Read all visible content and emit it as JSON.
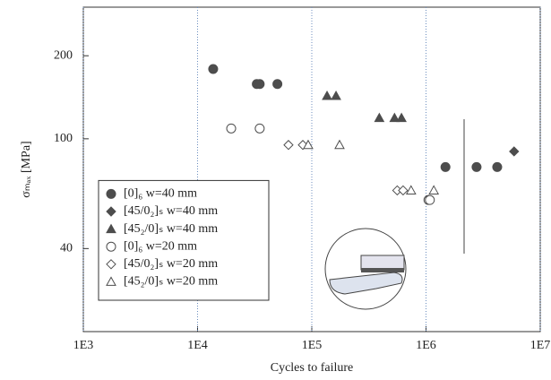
{
  "chart_data": {
    "type": "scatter",
    "x_label": "Cycles to failure",
    "y_label": "σₘₐₓ [MPa]",
    "log_x": true,
    "log_y": true,
    "xlim": [
      1000,
      10000000
    ],
    "xticks": [
      {
        "value": 1000,
        "label": "1E3"
      },
      {
        "value": 10000,
        "label": "1E4"
      },
      {
        "value": 100000,
        "label": "1E5"
      },
      {
        "value": 1000000,
        "label": "1E6"
      },
      {
        "value": 10000000,
        "label": "1E7"
      }
    ],
    "ylim": [
      20,
      300
    ],
    "yticks": [
      40,
      100,
      200
    ],
    "grid": "x",
    "legend": "lower left",
    "series": [
      {
        "name": "[0]₆ w=40 mm",
        "marker": "circle",
        "filled": true,
        "color": "#4d4d4d",
        "x": [
          13700,
          33000,
          35000,
          50000,
          1480000,
          2770000,
          4200000
        ],
        "values": [
          179,
          158,
          158,
          158,
          79,
          79,
          79
        ]
      },
      {
        "name": "[45/0₂]ₛ w=40 mm",
        "marker": "diamond",
        "filled": true,
        "color": "#4d4d4d",
        "x": [
          5900000
        ],
        "values": [
          90
        ]
      },
      {
        "name": "[45₂/0]ₛ w=40 mm",
        "marker": "triangle",
        "filled": true,
        "color": "#4d4d4d",
        "x": [
          136000,
          163000,
          390000,
          530000,
          610000
        ],
        "values": [
          143,
          143,
          119,
          119,
          119
        ]
      },
      {
        "name": "[0]₆ w=20 mm",
        "marker": "circle",
        "filled": false,
        "color": "#4d4d4d",
        "x": [
          19700,
          35000,
          1050000,
          1080000
        ],
        "values": [
          109,
          109,
          60,
          60
        ]
      },
      {
        "name": "[45/0₂]ₛ w=20 mm",
        "marker": "diamond",
        "filled": false,
        "color": "#4d4d4d",
        "x": [
          62500,
          83500,
          560000,
          630000
        ],
        "values": [
          95,
          95,
          65,
          65
        ]
      },
      {
        "name": "[45₂/0]ₛ w=20 mm",
        "marker": "triangle",
        "filled": false,
        "color": "#4d4d4d",
        "x": [
          93000,
          175000,
          740000,
          1170000
        ],
        "values": [
          95,
          95,
          65,
          65
        ]
      }
    ]
  }
}
